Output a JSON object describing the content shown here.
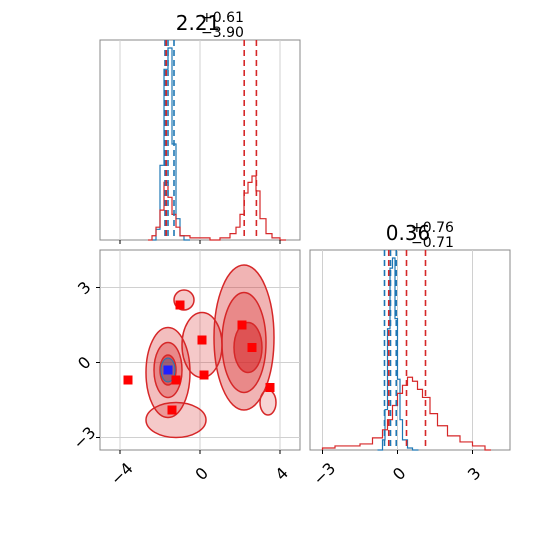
{
  "chart_data": [
    {
      "panel": "top-left",
      "type": "histogram",
      "title": {
        "value": "2.21",
        "sup": "+0.61",
        "sub": "−3.90"
      },
      "xlim": [
        -5.0,
        5.0
      ],
      "grid": true,
      "series": [
        {
          "color": "#1f77b4",
          "bins_x": [
            -2.4,
            -2.2,
            -2.0,
            -1.8,
            -1.6,
            -1.4,
            -1.2,
            -1.0,
            -0.8
          ],
          "heights": [
            0.0,
            0.05,
            0.35,
            0.8,
            0.9,
            0.45,
            0.1,
            0.02,
            0.0
          ],
          "quantiles": [
            -1.75,
            -1.6,
            -1.3
          ]
        },
        {
          "color": "#d62728",
          "bins_x": [
            -2.6,
            -2.4,
            -2.2,
            -2.0,
            -1.8,
            -1.6,
            -1.4,
            -1.2,
            -1.0,
            -0.5,
            0.0,
            0.5,
            1.0,
            1.5,
            1.8,
            2.0,
            2.2,
            2.4,
            2.6,
            2.8,
            3.0,
            3.3,
            3.6,
            4.0
          ],
          "heights": [
            0.0,
            0.02,
            0.06,
            0.14,
            0.27,
            0.2,
            0.12,
            0.06,
            0.02,
            0.01,
            0.01,
            0.0,
            0.01,
            0.03,
            0.06,
            0.12,
            0.22,
            0.27,
            0.3,
            0.23,
            0.1,
            0.03,
            0.01,
            0.0
          ],
          "quantiles": [
            -1.69,
            2.21,
            2.82
          ]
        }
      ]
    },
    {
      "panel": "bottom-left",
      "type": "contour",
      "xlim": [
        -5.0,
        5.0
      ],
      "ylim": [
        -3.5,
        4.5
      ],
      "xticks": [
        "−4",
        "0",
        "4"
      ],
      "yticks": [
        "−3",
        "0",
        "3"
      ],
      "grid": true,
      "series": [
        {
          "color": "#1f77b4",
          "points": [
            [
              -1.6,
              -0.3
            ]
          ]
        },
        {
          "color": "#d62728",
          "points": [
            [
              -1.0,
              2.3
            ],
            [
              2.1,
              1.5
            ],
            [
              2.6,
              0.6
            ],
            [
              0.1,
              0.9
            ],
            [
              0.2,
              -0.5
            ],
            [
              -1.2,
              -0.7
            ],
            [
              -3.6,
              -0.7
            ],
            [
              3.5,
              -1.0
            ],
            [
              -1.4,
              -1.9
            ]
          ]
        }
      ]
    },
    {
      "panel": "bottom-right",
      "type": "histogram",
      "title": {
        "value": "0.36",
        "sup": "+0.76",
        "sub": "−0.71"
      },
      "xlim": [
        -3.5,
        4.5
      ],
      "xticks": [
        "−3",
        "0",
        "3"
      ],
      "grid": true,
      "series": [
        {
          "color": "#1f77b4",
          "bins_x": [
            -0.8,
            -0.6,
            -0.5,
            -0.4,
            -0.3,
            -0.2,
            -0.1,
            0.0,
            0.1,
            0.2,
            0.4,
            0.6
          ],
          "heights": [
            0.0,
            0.05,
            0.2,
            0.6,
            0.9,
            0.95,
            0.65,
            0.35,
            0.15,
            0.05,
            0.01,
            0.0
          ],
          "quantiles": [
            -0.52,
            -0.28,
            -0.05
          ]
        },
        {
          "color": "#d62728",
          "bins_x": [
            -3.0,
            -2.5,
            -2.0,
            -1.5,
            -1.0,
            -0.6,
            -0.4,
            -0.2,
            0.0,
            0.2,
            0.4,
            0.6,
            0.8,
            1.0,
            1.3,
            1.6,
            2.0,
            2.5,
            3.0,
            3.5
          ],
          "heights": [
            0.01,
            0.02,
            0.02,
            0.03,
            0.06,
            0.1,
            0.15,
            0.22,
            0.28,
            0.32,
            0.36,
            0.34,
            0.3,
            0.26,
            0.18,
            0.12,
            0.07,
            0.04,
            0.02,
            0.0
          ],
          "quantiles": [
            -0.35,
            0.36,
            1.12
          ]
        }
      ]
    }
  ]
}
